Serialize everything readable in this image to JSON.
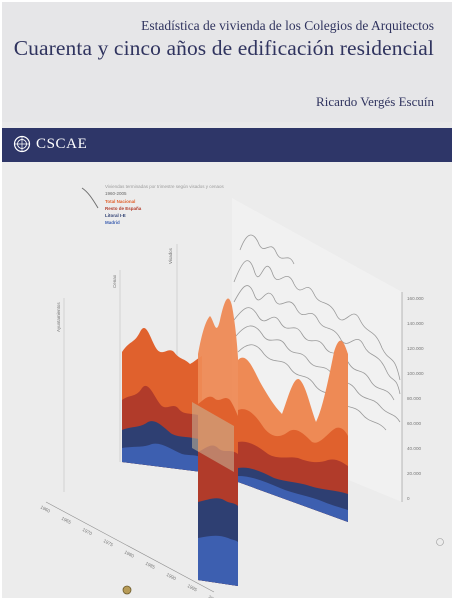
{
  "cover": {
    "subtitle": "Estadística de vivienda de los Colegios de Arquitectos",
    "title": "Cuarenta y cinco años de edificación residencial",
    "author": "Ricardo Vergés Escuín"
  },
  "brand": {
    "name": "CSCAE",
    "band_color": "#2e3668",
    "text_color": "#30345f"
  },
  "chart_legend": {
    "title": "Viviendas terminadas por trimestre según visados y cenaos",
    "range": "1960-2005",
    "items": [
      {
        "label": "Total Nacional",
        "color": "#e0612d"
      },
      {
        "label": "Resto de España",
        "color": "#b13b2a"
      },
      {
        "label": "Litoral I-E",
        "color": "#2e3f72"
      },
      {
        "label": "Madrid",
        "color": "#3d5fb0"
      }
    ]
  },
  "chart_axes": {
    "vertical_labels": [
      "Ayuntamientos",
      "Cenao",
      "Visados"
    ],
    "y_ticks": [
      "160.000",
      "140.000",
      "120.000",
      "100.000",
      "80.000",
      "60.000",
      "40.000",
      "20.000",
      "0"
    ],
    "x_ticks": [
      "1960",
      "1965",
      "1970",
      "1975",
      "1980",
      "1985",
      "1990",
      "1995",
      "2000"
    ]
  },
  "chart_data": {
    "type": "area",
    "title": "Viviendas terminadas por trimestre según visados y cenaos",
    "subtitle": "1960-2005",
    "series": [
      {
        "name": "Total Nacional",
        "color": "#e0612d"
      },
      {
        "name": "Resto de España",
        "color": "#b13b2a"
      },
      {
        "name": "Litoral I-E",
        "color": "#2e3f72"
      },
      {
        "name": "Madrid",
        "color": "#3d5fb0"
      }
    ],
    "x_ticks": [
      1960,
      1965,
      1970,
      1975,
      1980,
      1985,
      1990,
      1995,
      2000
    ],
    "ylim": [
      0,
      160000
    ],
    "y_ticks": [
      0,
      20000,
      40000,
      60000,
      80000,
      100000,
      120000,
      140000,
      160000
    ],
    "legend": "top-left"
  }
}
